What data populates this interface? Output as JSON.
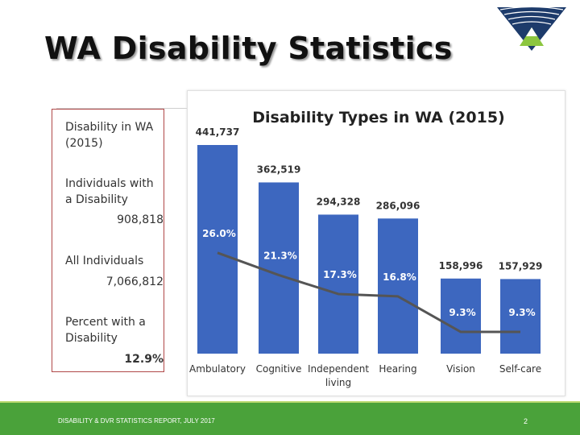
{
  "slide": {
    "title": "WA Disability Statistics",
    "footer": "DISABILITY & DVR STATISTICS REPORT, JULY 2017",
    "page_number": "2"
  },
  "sidebar": {
    "heading": "Disability in WA (2015)",
    "individuals_with_disability_label": "Individuals with a Disability",
    "individuals_with_disability_value": "908,818",
    "all_individuals_label": "All Individuals",
    "all_individuals_value": "7,066,812",
    "percent_label": "Percent with a Disability",
    "percent_value": "12.9%"
  },
  "colors": {
    "bar": "#3d67bf",
    "line": "#555555",
    "footer": "#4aa23a",
    "logo_dark": "#1d3b6b",
    "logo_green": "#8cc63f"
  },
  "chart_data": {
    "type": "bar",
    "title": "Disability Types in WA (2015)",
    "categories": [
      "Ambulatory",
      "Cognitive",
      "Independent living",
      "Hearing",
      "Vision",
      "Self-care"
    ],
    "category_labels": [
      [
        "Ambulatory"
      ],
      [
        "Cognitive"
      ],
      [
        "Independent",
        "living"
      ],
      [
        "Hearing"
      ],
      [
        "Vision"
      ],
      [
        "Self-care"
      ]
    ],
    "series": [
      {
        "values": [
          441737,
          362519,
          294328,
          286096,
          158996,
          157929
        ]
      },
      {
        "values": [
          26.0,
          21.3,
          17.3,
          16.8,
          9.3,
          9.3
        ]
      }
    ],
    "value_labels": [
      "441,737",
      "362,519",
      "294,328",
      "286,096",
      "158,996",
      "157,929"
    ],
    "percent_labels": [
      "26.0%",
      "21.3%",
      "17.3%",
      "16.8%",
      "9.3%",
      "9.3%"
    ],
    "ylim": [
      0,
      441737
    ],
    "grid": false,
    "legend": "none"
  }
}
